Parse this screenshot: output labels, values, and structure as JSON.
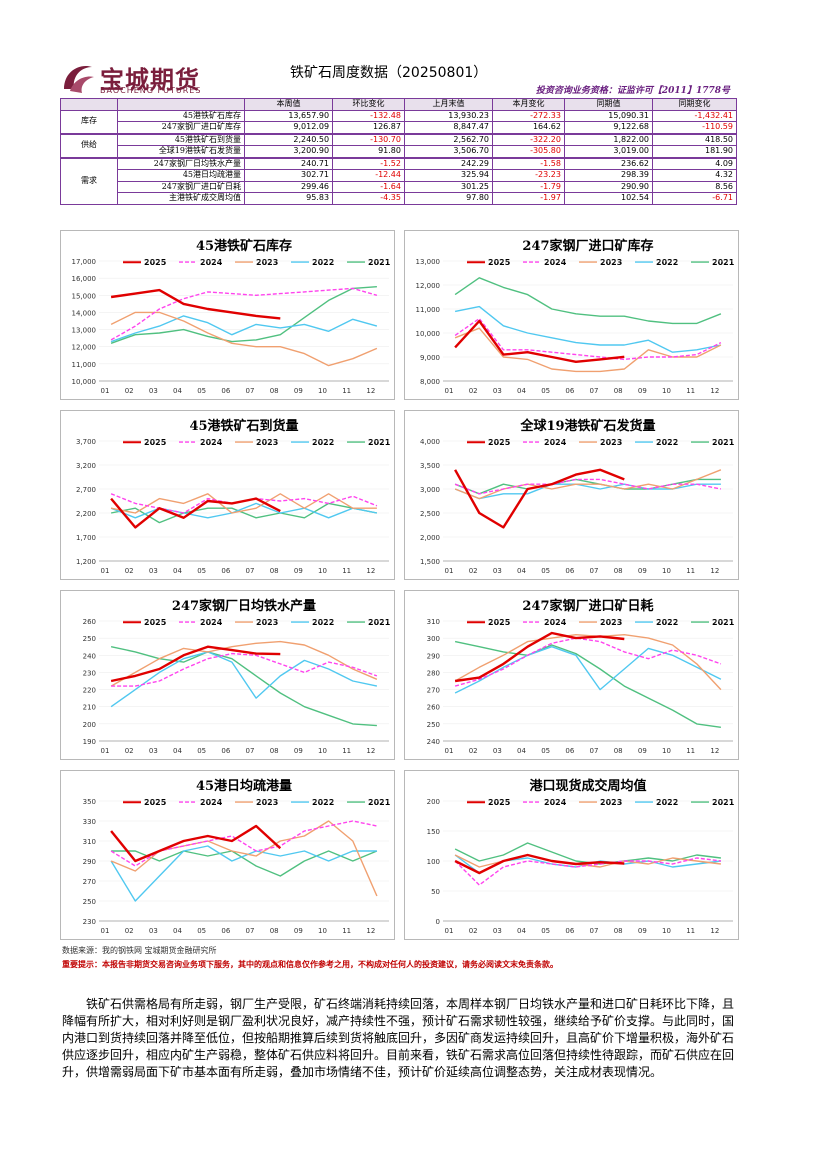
{
  "header": {
    "logo_cn": "宝城期货",
    "logo_en": "BAOCHENG FUTURES",
    "title": "铁矿石周度数据（20250801）",
    "license": "投资咨询业务资格：证监许可【2011】1778号"
  },
  "table": {
    "columns": [
      "",
      "",
      "本周值",
      "环比变化",
      "上月末值",
      "本月变化",
      "同期值",
      "同期变化"
    ],
    "groups": [
      {
        "name": "库存",
        "rows": [
          {
            "item": "45港铁矿石库存",
            "values": [
              "13,657.90",
              "-132.48",
              "13,930.23",
              "-272.33",
              "15,090.31",
              "-1,432.41"
            ]
          },
          {
            "item": "247家钢厂进口矿库存",
            "values": [
              "9,012.09",
              "126.87",
              "8,847.47",
              "164.62",
              "9,122.68",
              "-110.59"
            ]
          }
        ]
      },
      {
        "name": "供给",
        "rows": [
          {
            "item": "45港铁矿石到货量",
            "values": [
              "2,240.50",
              "-130.70",
              "2,562.70",
              "-322.20",
              "1,822.00",
              "418.50"
            ]
          },
          {
            "item": "全球19港铁矿石发货量",
            "values": [
              "3,200.90",
              "91.80",
              "3,506.70",
              "-305.80",
              "3,019.00",
              "181.90"
            ]
          }
        ]
      },
      {
        "name": "需求",
        "rows": [
          {
            "item": "247家钢厂日均铁水产量",
            "values": [
              "240.71",
              "-1.52",
              "242.29",
              "-1.58",
              "236.62",
              "4.09"
            ]
          },
          {
            "item": "45港日均疏港量",
            "values": [
              "302.71",
              "-12.44",
              "325.94",
              "-23.23",
              "298.39",
              "4.32"
            ]
          },
          {
            "item": "247家钢厂进口矿日耗",
            "values": [
              "299.46",
              "-1.64",
              "301.25",
              "-1.79",
              "290.90",
              "8.56"
            ]
          },
          {
            "item": "主港铁矿成交周均值",
            "values": [
              "95.83",
              "-4.35",
              "97.80",
              "-1.97",
              "102.54",
              "-6.71"
            ]
          }
        ]
      }
    ]
  },
  "colors": {
    "2025": "#e00000",
    "2024": "#ff44ee",
    "2023": "#f0a070",
    "2022": "#50c8f0",
    "2021": "#50c080",
    "table_border": "#7a3a9a",
    "negative": "#e00000"
  },
  "chart_data": [
    {
      "type": "line",
      "title": "45港铁矿石库存",
      "ylim": [
        10000,
        17000
      ],
      "yticks": [
        "17,000",
        "16,000",
        "15,000",
        "14,000",
        "13,000",
        "12,000",
        "11,000",
        "10,000"
      ],
      "months": [
        "01",
        "02",
        "03",
        "04",
        "05",
        "06",
        "07",
        "08",
        "09",
        "10",
        "11",
        "12"
      ],
      "series": [
        {
          "name": "2025",
          "values": [
            14900,
            15100,
            15300,
            14500,
            14200,
            14000,
            13800,
            13650
          ]
        },
        {
          "name": "2024",
          "values": [
            12400,
            13200,
            14200,
            14800,
            15200,
            15100,
            15000,
            15100,
            15200,
            15300,
            15400,
            15000
          ]
        },
        {
          "name": "2023",
          "values": [
            13300,
            14000,
            14000,
            13500,
            12800,
            12200,
            12000,
            12000,
            11600,
            10900,
            11300,
            11900
          ]
        },
        {
          "name": "2022",
          "values": [
            12300,
            12800,
            13200,
            13800,
            13400,
            12700,
            13300,
            13100,
            13300,
            12900,
            13600,
            13200
          ]
        },
        {
          "name": "2021",
          "values": [
            12200,
            12700,
            12800,
            13000,
            12600,
            12300,
            12400,
            12700,
            13700,
            14700,
            15400,
            15500
          ]
        }
      ]
    },
    {
      "type": "line",
      "title": "247家钢厂进口矿库存",
      "ylim": [
        8000,
        13000
      ],
      "yticks": [
        "13,000",
        "12,000",
        "11,000",
        "10,000",
        "9,000",
        "8,000"
      ],
      "months": [
        "01",
        "02",
        "03",
        "04",
        "05",
        "06",
        "07",
        "08",
        "09",
        "10",
        "11",
        "12"
      ],
      "series": [
        {
          "name": "2025",
          "values": [
            9400,
            10500,
            9100,
            9200,
            9000,
            8800,
            8900,
            9010
          ]
        },
        {
          "name": "2024",
          "values": [
            9900,
            10600,
            9300,
            9300,
            9200,
            9100,
            9000,
            8900,
            9000,
            9000,
            9100,
            9600
          ]
        },
        {
          "name": "2023",
          "values": [
            9800,
            10200,
            9000,
            8900,
            8500,
            8400,
            8400,
            8500,
            9300,
            9000,
            9000,
            9500
          ]
        },
        {
          "name": "2022",
          "values": [
            10900,
            11100,
            10300,
            10000,
            9800,
            9600,
            9500,
            9500,
            9700,
            9200,
            9300,
            9500
          ]
        },
        {
          "name": "2021",
          "values": [
            11600,
            12300,
            11900,
            11600,
            11000,
            10800,
            10700,
            10700,
            10500,
            10400,
            10400,
            10800
          ]
        }
      ]
    },
    {
      "type": "line",
      "title": "45港铁矿石到货量",
      "ylim": [
        1200,
        3700
      ],
      "yticks": [
        "3,700",
        "3,200",
        "2,700",
        "2,200",
        "1,700",
        "1,200"
      ],
      "months": [
        "01",
        "02",
        "03",
        "04",
        "05",
        "06",
        "07",
        "08",
        "09",
        "10",
        "11",
        "12"
      ],
      "series": [
        {
          "name": "2025",
          "values": [
            2500,
            1900,
            2300,
            2100,
            2450,
            2400,
            2500,
            2240
          ]
        },
        {
          "name": "2024",
          "values": [
            2600,
            2400,
            2300,
            2200,
            2500,
            2400,
            2500,
            2450,
            2500,
            2400,
            2550,
            2350
          ]
        },
        {
          "name": "2023",
          "values": [
            2300,
            2200,
            2500,
            2400,
            2600,
            2200,
            2300,
            2600,
            2300,
            2600,
            2300,
            2300
          ]
        },
        {
          "name": "2022",
          "values": [
            2300,
            2100,
            2300,
            2200,
            2100,
            2200,
            2400,
            2200,
            2300,
            2100,
            2300,
            2200
          ]
        },
        {
          "name": "2021",
          "values": [
            2200,
            2300,
            2000,
            2200,
            2300,
            2300,
            2100,
            2200,
            2100,
            2400,
            2300,
            2200
          ]
        }
      ]
    },
    {
      "type": "line",
      "title": "全球19港铁矿石发货量",
      "ylim": [
        1500,
        4000
      ],
      "yticks": [
        "4,000",
        "3,500",
        "3,000",
        "2,500",
        "2,000",
        "1,500"
      ],
      "months": [
        "01",
        "02",
        "03",
        "04",
        "05",
        "06",
        "07",
        "08",
        "09",
        "10",
        "11",
        "12"
      ],
      "series": [
        {
          "name": "2025",
          "values": [
            3400,
            2500,
            2200,
            3000,
            3100,
            3300,
            3400,
            3200
          ]
        },
        {
          "name": "2024",
          "values": [
            3100,
            2900,
            3000,
            3100,
            3100,
            3200,
            3200,
            3100,
            3000,
            3100,
            3100,
            3000
          ]
        },
        {
          "name": "2023",
          "values": [
            3000,
            2800,
            3000,
            3100,
            3000,
            3100,
            3100,
            3000,
            3100,
            3000,
            3200,
            3400
          ]
        },
        {
          "name": "2022",
          "values": [
            3000,
            2800,
            2900,
            2900,
            3100,
            3100,
            3000,
            3100,
            3000,
            3000,
            3100,
            3100
          ]
        },
        {
          "name": "2021",
          "values": [
            3100,
            2900,
            3100,
            3000,
            3100,
            3200,
            3100,
            3000,
            3000,
            3100,
            3200,
            3200
          ]
        }
      ]
    },
    {
      "type": "line",
      "title": "247家钢厂日均铁水产量",
      "ylim": [
        190,
        260
      ],
      "yticks": [
        "260",
        "250",
        "240",
        "230",
        "220",
        "210",
        "200",
        "190"
      ],
      "months": [
        "01",
        "02",
        "03",
        "04",
        "05",
        "06",
        "07",
        "08",
        "09",
        "10",
        "11",
        "12"
      ],
      "series": [
        {
          "name": "2025",
          "values": [
            225,
            228,
            232,
            240,
            245,
            243,
            241,
            240.7
          ]
        },
        {
          "name": "2024",
          "values": [
            222,
            222,
            225,
            232,
            238,
            241,
            240,
            235,
            230,
            236,
            233,
            228
          ]
        },
        {
          "name": "2023",
          "values": [
            222,
            230,
            238,
            244,
            242,
            245,
            247,
            248,
            246,
            240,
            232,
            226
          ]
        },
        {
          "name": "2022",
          "values": [
            210,
            220,
            230,
            238,
            242,
            236,
            215,
            228,
            237,
            232,
            225,
            222
          ]
        },
        {
          "name": "2021",
          "values": [
            245,
            242,
            238,
            236,
            242,
            238,
            228,
            218,
            210,
            205,
            200,
            199
          ]
        }
      ]
    },
    {
      "type": "line",
      "title": "247家钢厂进口矿日耗",
      "ylim": [
        240,
        310
      ],
      "yticks": [
        "310",
        "300",
        "290",
        "280",
        "270",
        "260",
        "250",
        "240"
      ],
      "months": [
        "01",
        "02",
        "03",
        "04",
        "05",
        "06",
        "07",
        "08",
        "09",
        "10",
        "11",
        "12"
      ],
      "series": [
        {
          "name": "2025",
          "values": [
            275,
            277,
            285,
            295,
            303,
            300,
            301,
            299.5
          ]
        },
        {
          "name": "2024",
          "values": [
            272,
            276,
            282,
            290,
            297,
            300,
            298,
            292,
            288,
            293,
            290,
            285
          ]
        },
        {
          "name": "2023",
          "values": [
            275,
            283,
            290,
            298,
            300,
            302,
            301,
            302,
            300,
            296,
            285,
            270
          ]
        },
        {
          "name": "2022",
          "values": [
            268,
            275,
            283,
            290,
            295,
            290,
            270,
            282,
            294,
            290,
            283,
            276
          ]
        },
        {
          "name": "2021",
          "values": [
            298,
            295,
            292,
            290,
            296,
            291,
            282,
            272,
            265,
            258,
            250,
            248
          ]
        }
      ]
    },
    {
      "type": "line",
      "title": "45港日均疏港量",
      "ylim": [
        230,
        350
      ],
      "yticks": [
        "350",
        "330",
        "310",
        "290",
        "270",
        "250",
        "230"
      ],
      "months": [
        "01",
        "02",
        "03",
        "04",
        "05",
        "06",
        "07",
        "08",
        "09",
        "10",
        "11",
        "12"
      ],
      "series": [
        {
          "name": "2025",
          "values": [
            320,
            290,
            300,
            310,
            315,
            310,
            325,
            302.7
          ]
        },
        {
          "name": "2024",
          "values": [
            300,
            285,
            300,
            305,
            310,
            315,
            300,
            305,
            320,
            325,
            330,
            325
          ]
        },
        {
          "name": "2023",
          "values": [
            290,
            280,
            300,
            305,
            310,
            300,
            295,
            310,
            315,
            330,
            310,
            255
          ]
        },
        {
          "name": "2022",
          "values": [
            290,
            250,
            275,
            300,
            305,
            290,
            300,
            295,
            300,
            290,
            300,
            300
          ]
        },
        {
          "name": "2021",
          "values": [
            300,
            300,
            290,
            300,
            295,
            300,
            285,
            275,
            290,
            300,
            290,
            300
          ]
        }
      ]
    },
    {
      "type": "line",
      "title": "港口现货成交周均值",
      "ylim": [
        0,
        200
      ],
      "yticks": [
        "200",
        "150",
        "100",
        "50",
        "0"
      ],
      "months": [
        "01",
        "02",
        "03",
        "04",
        "05",
        "06",
        "07",
        "08",
        "09",
        "10",
        "11",
        "12"
      ],
      "series": [
        {
          "name": "2025",
          "values": [
            100,
            80,
            100,
            110,
            100,
            95,
            98,
            95.8
          ]
        },
        {
          "name": "2024",
          "values": [
            100,
            60,
            90,
            100,
            95,
            90,
            95,
            100,
            100,
            95,
            105,
            100
          ]
        },
        {
          "name": "2023",
          "values": [
            110,
            90,
            100,
            110,
            100,
            95,
            90,
            100,
            95,
            105,
            100,
            95
          ]
        },
        {
          "name": "2022",
          "values": [
            110,
            80,
            100,
            105,
            95,
            90,
            100,
            95,
            100,
            90,
            95,
            100
          ]
        },
        {
          "name": "2021",
          "values": [
            120,
            100,
            110,
            130,
            115,
            100,
            95,
            100,
            105,
            100,
            110,
            105
          ]
        }
      ]
    }
  ],
  "footer": {
    "source": "数据来源：我的钢铁网 宝城期货金融研究所",
    "notice": "重要提示：本报告非期货交易咨询业务项下服务，其中的观点和信息仅作参考之用，不构成对任何人的投资建议，请务必阅读文末免责条款。",
    "analysis": "铁矿石供需格局有所走弱，钢厂生产受限，矿石终端消耗持续回落，本周样本钢厂日均铁水产量和进口矿日耗环比下降，且降幅有所扩大，相对利好则是钢厂盈利状况良好，减产持续性不强，预计矿石需求韧性较强，继续给予矿价支撑。与此同时，国内港口到货持续回落并降至低位，但按船期推算后续到货将触底回升，多因矿商发运持续回升，且高矿价下增量积极，海外矿石供应逐步回升，相应内矿生产弱稳，整体矿石供应料将回升。目前来看，铁矿石需求高位回落但持续性待跟踪，而矿石供应在回升，供增需弱局面下矿市基本面有所走弱，叠加市场情绪不佳，预计矿价延续高位调整态势，关注成材表现情况。"
  }
}
